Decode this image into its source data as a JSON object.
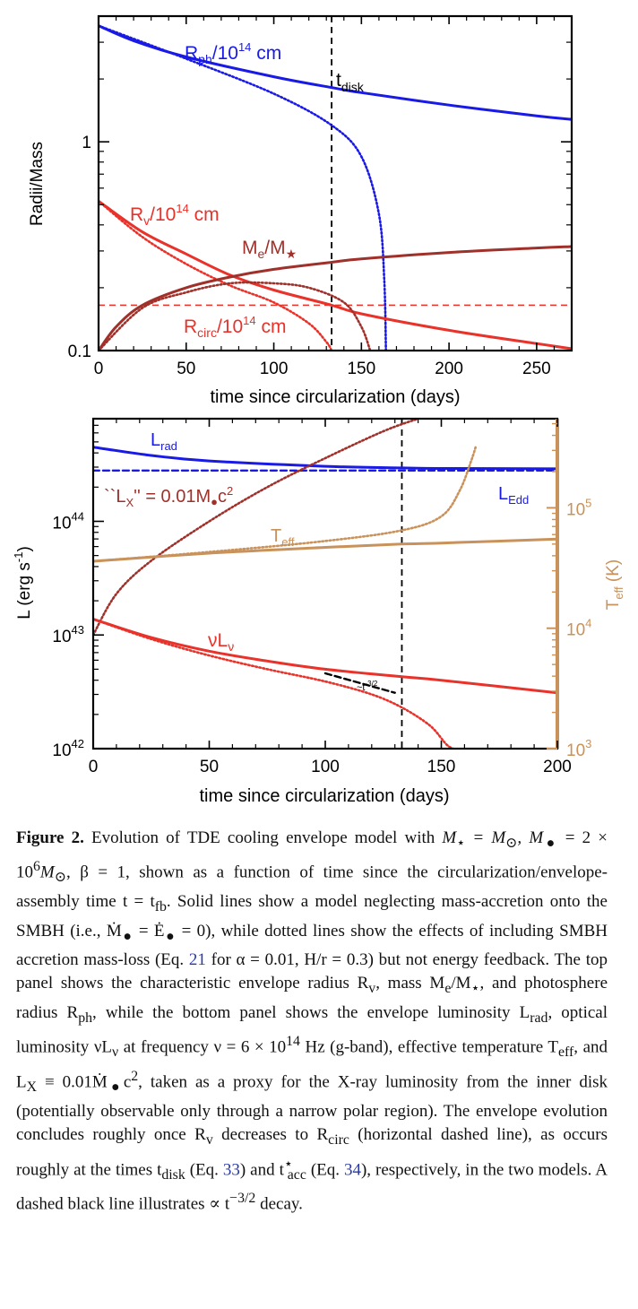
{
  "colors": {
    "blue": "#1a1ae6",
    "red": "#e8322a",
    "brown": "#a0302a",
    "tan": "#c8925a",
    "black": "#000000"
  },
  "top_panel": {
    "ylabel": "Radii/Mass",
    "xlabel": "time since circularization (days)",
    "xticks": [
      "0",
      "50",
      "100",
      "150",
      "200",
      "250"
    ],
    "yticks": [
      "0.1",
      "1"
    ],
    "labels": {
      "rph_main": "R",
      "rph_sub": "ph",
      "rph_tail": "/10",
      "rph_sup": "14",
      "rph_unit": " cm",
      "tdisk_main": "t",
      "tdisk_sub": "disk",
      "rv_main": "R",
      "rv_sub": "v",
      "rv_tail": "/10",
      "rv_sup": "14",
      "rv_unit": " cm",
      "me_main": "M",
      "me_sub": "e",
      "me_tail": "/M",
      "me_star": "★",
      "rcirc_main": "R",
      "rcirc_sub": "circ",
      "rcirc_tail": "/10",
      "rcirc_sup": "14",
      "rcirc_unit": " cm"
    }
  },
  "bottom_panel": {
    "ylabel_main": "L  (erg s",
    "ylabel_sup": "-1",
    "ylabel_tail": ")",
    "ylabel_right_main": "T",
    "ylabel_right_sub": "eff",
    "ylabel_right_tail": " (K)",
    "xlabel": "time since circularization (days)",
    "xticks": [
      "0",
      "50",
      "100",
      "150",
      "200"
    ],
    "yticks_left": [
      {
        "base": "10",
        "exp": "42"
      },
      {
        "base": "10",
        "exp": "43"
      },
      {
        "base": "10",
        "exp": "44"
      }
    ],
    "yticks_right": [
      {
        "base": "10",
        "exp": "3"
      },
      {
        "base": "10",
        "exp": "4"
      },
      {
        "base": "10",
        "exp": "5"
      }
    ],
    "labels": {
      "lrad_main": "L",
      "lrad_sub": "rad",
      "ledd_main": "L",
      "ledd_sub": "Edd",
      "lx_open": "``L",
      "lx_sub": "X",
      "lx_rest": "'' = 0.01M",
      "lx_dot": "●",
      "lx_c": "c",
      "lx_sup": "2",
      "teff_main": "T",
      "teff_sub": "eff",
      "nulnu_main": "νL",
      "nulnu_sub": "ν",
      "slope_main": "~t",
      "slope_sup": "-3/2"
    }
  },
  "chart_data": [
    {
      "type": "line",
      "xlabel": "time since circularization (days)",
      "ylabel": "Radii/Mass",
      "xlim": [
        0,
        270
      ],
      "ylim": [
        0.1,
        4.0
      ],
      "yscale": "log",
      "vlines": [
        {
          "name": "t_disk",
          "x": 133
        }
      ],
      "hlines": [
        {
          "name": "R_circ/10^14 cm",
          "y": 0.165
        }
      ],
      "series": [
        {
          "name": "R_ph/10^14 cm",
          "style": "solid",
          "x": [
            0,
            20,
            50,
            100,
            133,
            150,
            200,
            250,
            270
          ],
          "y": [
            3.6,
            3.05,
            2.55,
            2.05,
            1.82,
            1.72,
            1.5,
            1.33,
            1.28
          ]
        },
        {
          "name": "R_ph/10^14 cm (accretion)",
          "style": "dotted",
          "x": [
            0,
            50,
            100,
            133,
            150,
            160,
            163,
            164
          ],
          "y": [
            3.6,
            2.5,
            1.7,
            1.2,
            0.85,
            0.45,
            0.22,
            0.1
          ]
        },
        {
          "name": "R_v/10^14 cm",
          "style": "solid",
          "x": [
            0,
            25,
            50,
            75,
            100,
            133,
            150,
            200,
            250,
            270
          ],
          "y": [
            0.52,
            0.37,
            0.29,
            0.23,
            0.195,
            0.165,
            0.15,
            0.125,
            0.108,
            0.102
          ]
        },
        {
          "name": "R_v/10^14 cm (accretion)",
          "style": "dotted",
          "x": [
            0,
            25,
            50,
            75,
            100,
            120,
            130,
            133
          ],
          "y": [
            0.52,
            0.35,
            0.26,
            0.205,
            0.17,
            0.135,
            0.11,
            0.1
          ]
        },
        {
          "name": "M_e/M_star",
          "style": "solid",
          "x": [
            0,
            10,
            25,
            50,
            75,
            100,
            133,
            150,
            200,
            250,
            270
          ],
          "y": [
            0.1,
            0.13,
            0.165,
            0.2,
            0.225,
            0.245,
            0.265,
            0.275,
            0.295,
            0.31,
            0.315
          ]
        },
        {
          "name": "M_e/M_star (accretion)",
          "style": "dotted",
          "x": [
            0,
            25,
            50,
            75,
            100,
            120,
            140,
            150,
            155
          ],
          "y": [
            0.1,
            0.16,
            0.19,
            0.21,
            0.21,
            0.2,
            0.17,
            0.13,
            0.1
          ]
        }
      ]
    },
    {
      "type": "line",
      "xlabel": "time since circularization (days)",
      "ylabel": "L (erg s^-1)",
      "ylabel_right": "T_eff (K)",
      "xlim": [
        0,
        200
      ],
      "ylim": [
        1e+42,
        8e+44
      ],
      "ylim_right": [
        1000.0,
        550000.0
      ],
      "yscale": "log",
      "vlines": [
        {
          "name": "t_disk",
          "x": 133
        }
      ],
      "series": [
        {
          "name": "L_rad",
          "style": "solid",
          "axis": "left",
          "x": [
            0,
            25,
            50,
            100,
            133,
            150,
            200
          ],
          "y": [
            4.5e+44,
            3.8e+44,
            3.4e+44,
            3.05e+44,
            2.95e+44,
            2.92e+44,
            2.9e+44
          ]
        },
        {
          "name": "L_Edd",
          "style": "dashed",
          "axis": "left",
          "x": [
            0,
            200
          ],
          "y": [
            2.8e+44,
            2.8e+44
          ]
        },
        {
          "name": "L_X = 0.01 Mdot c^2",
          "style": "dotted",
          "axis": "left",
          "x": [
            0,
            10,
            25,
            50,
            75,
            100,
            125,
            140
          ],
          "y": [
            1e+43,
            2.3e+43,
            4.5e+43,
            1e+44,
            2e+44,
            3.6e+44,
            6.2e+44,
            8e+44
          ]
        },
        {
          "name": "T_eff",
          "style": "solid",
          "axis": "right",
          "x": [
            0,
            50,
            100,
            133,
            150,
            200
          ],
          "y": [
            36000.0,
            42000.0,
            47000.0,
            50000.0,
            51000.0,
            55000.0
          ]
        },
        {
          "name": "T_eff (accretion)",
          "style": "dotted",
          "axis": "right",
          "x": [
            0,
            50,
            100,
            133,
            150,
            158,
            163,
            165
          ],
          "y": [
            36000.0,
            43000.0,
            53000.0,
            65000.0,
            85000.0,
            140000.0,
            250000.0,
            330000.0
          ]
        },
        {
          "name": "nu L_nu",
          "style": "solid",
          "axis": "left",
          "x": [
            0,
            25,
            50,
            75,
            100,
            133,
            150,
            200
          ],
          "y": [
            1.38e+43,
            9.5e+42,
            7.2e+42,
            5.9e+42,
            5e+42,
            4.3e+42,
            4e+42,
            3.1e+42
          ]
        },
        {
          "name": "nu L_nu (accretion)",
          "style": "dotted",
          "axis": "left",
          "x": [
            0,
            25,
            50,
            75,
            100,
            120,
            133,
            145,
            152,
            155
          ],
          "y": [
            1.38e+43,
            9.2e+42,
            6.6e+42,
            5e+42,
            3.9e+42,
            3e+42,
            2.3e+42,
            1.6e+42,
            1.1e+42,
            1e+42
          ]
        },
        {
          "name": "t^-3/2 slope",
          "style": "dashed",
          "axis": "left",
          "x": [
            100,
            130
          ],
          "y": [
            4.6e+42,
            3.1e+42
          ]
        }
      ]
    }
  ],
  "caption": {
    "fig_label": "Figure 2.",
    "s1": " Evolution of TDE cooling envelope model with ",
    "s2": "M",
    "s2sub": "⋆",
    "s3": " = M",
    "s3sub": "⊙",
    "s4": ", M",
    "s4sub": "●",
    "s5": " = 2 × 10",
    "s5sup": "6",
    "s6": "M",
    "s6sub": "⊙",
    "s7": ", β = 1, shown as a function of time since the circularization/envelope-assembly time t = t",
    "s7sub": "fb",
    "s8": ". Solid lines show a model neglecting mass-accretion onto the SMBH (i.e., Ṁ",
    "s8sub": "●",
    "s9": " = Ė",
    "s9sub": "●",
    "s10": " = 0), while dotted lines show the effects of including SMBH accretion mass-loss (Eq. ",
    "ref21": "21",
    "s11": " for α = 0.01, H/r = 0.3) but not energy feedback. The top panel shows the characteristic envelope radius R",
    "s11sub": "v",
    "s12": ", mass M",
    "s12sub": "e",
    "s13": "/M",
    "s13sub": "⋆",
    "s14": ", and photosphere radius R",
    "s14sub": "ph",
    "s15": ", while the bottom panel shows the envelope luminosity L",
    "s15sub": "rad",
    "s16": ", optical luminosity νL",
    "s16sub": "ν",
    "s17": " at frequency ν = 6 × 10",
    "s17sup": "14",
    "s18": " Hz (g-band), effective temperature T",
    "s18sub": "eff",
    "s19": ", and L",
    "s19sub": "X",
    "s20": " ≡ 0.01Ṁ",
    "s20sub": "●",
    "s21": "c",
    "s21sup": "2",
    "s22": ", taken as a proxy for the X-ray luminosity from the inner disk (potentially observable only through a narrow polar region). The envelope evolution concludes roughly once R",
    "s22sub": "v",
    "s23": " decreases to R",
    "s23sub": "circ",
    "s24": " (horizontal dashed line), as occurs roughly at the times t",
    "s24sub": "disk",
    "s25": " (Eq. ",
    "ref33": "33",
    "s26": ") and t",
    "s26sup": "⋆",
    "s26sub": "acc",
    "s27": " (Eq. ",
    "ref34": "34",
    "s28": "), respectively, in the two models. A dashed black line illustrates ∝ t",
    "s28sup": "−3/2",
    "s29": " decay."
  }
}
